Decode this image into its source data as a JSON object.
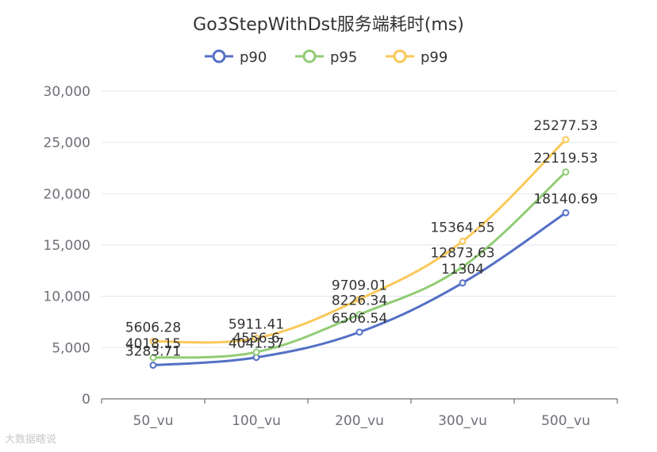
{
  "chart_data": {
    "type": "line",
    "title": "Go3StepWithDst服务端耗时(ms)",
    "categories": [
      "50_vu",
      "100_vu",
      "200_vu",
      "300_vu",
      "500_vu"
    ],
    "yticks": [
      "0",
      "5,000",
      "10,000",
      "15,000",
      "20,000",
      "25,000",
      "30,000"
    ],
    "ylim": [
      0,
      30000
    ],
    "grid": true,
    "legend_position": "top-center",
    "series": [
      {
        "name": "p90",
        "color": "#5470c6",
        "values": [
          3283.71,
          4041.37,
          6506.54,
          11304,
          18140.69
        ],
        "labels": [
          "3283.71",
          "4041.37",
          "6506.54",
          "11304",
          "18140.69"
        ]
      },
      {
        "name": "p95",
        "color": "#91cc75",
        "values": [
          4018.15,
          4556.6,
          8226.34,
          12873.63,
          22119.53
        ],
        "labels": [
          "4018.15",
          "4556.6",
          "8226.34",
          "12873.63",
          "22119.53"
        ]
      },
      {
        "name": "p99",
        "color": "#fac858",
        "values": [
          5606.28,
          5911.41,
          9709.01,
          15364.55,
          25277.53
        ],
        "labels": [
          "5606.28",
          "5911.41",
          "9709.01",
          "15364.55",
          "25277.53"
        ]
      }
    ]
  },
  "watermark": "大数据瞎说"
}
